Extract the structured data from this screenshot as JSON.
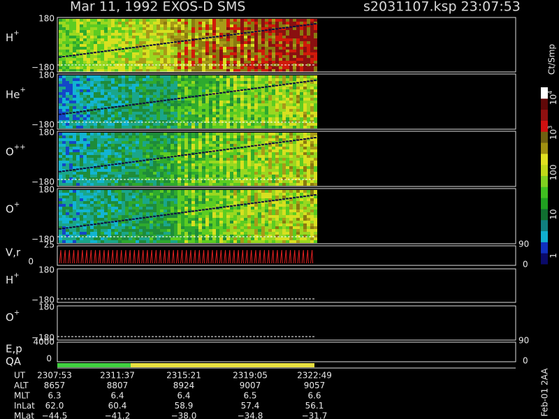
{
  "header": {
    "title": "Mar 11, 1992   EXOS-D SMS",
    "file": "s2031107.ksp  23:07:53"
  },
  "panels": [
    {
      "ion": "H",
      "charge": "+",
      "top_tick": "180",
      "bottom_tick": "−180"
    },
    {
      "ion": "He",
      "charge": "+",
      "top_tick": "180",
      "bottom_tick": "−180"
    },
    {
      "ion": "O",
      "charge": "++",
      "top_tick": "180",
      "bottom_tick": "−180"
    },
    {
      "ion": "O",
      "charge": "+",
      "top_tick": "180",
      "bottom_tick": "−180"
    }
  ],
  "vr": {
    "label": "V,r",
    "top_tick": "25",
    "bottom_tick": "0",
    "right_top": "90",
    "right_bottom": "0"
  },
  "low_panels": [
    {
      "ion": "H",
      "charge": "+",
      "top_tick": "180",
      "bottom_tick": "−180"
    },
    {
      "ion": "O",
      "charge": "+",
      "top_tick": "180",
      "bottom_tick": "−180"
    }
  ],
  "ep": {
    "label": "E,p",
    "top_tick": "4000",
    "bottom_tick": "0",
    "right_top": "90",
    "right_bottom": "0"
  },
  "qa": {
    "label": "QA"
  },
  "colorbar": {
    "unit": "Ct/Smp",
    "labels": [
      {
        "base": "10",
        "exp": "4"
      },
      {
        "base": "10",
        "exp": "3"
      },
      {
        "base": "100"
      },
      {
        "base": "10"
      },
      {
        "base": "1"
      }
    ]
  },
  "orbit": {
    "rows": [
      {
        "name": "UT",
        "values": [
          "2307:53",
          "2311:37",
          "2315:21",
          "2319:05",
          "2322:49"
        ]
      },
      {
        "name": "ALT",
        "values": [
          "8657",
          "8807",
          "8924",
          "9007",
          "9057"
        ]
      },
      {
        "name": "MLT",
        "values": [
          "6.3",
          "6.4",
          "6.4",
          "6.5",
          "6.6"
        ]
      },
      {
        "name": "InLat",
        "values": [
          "62.0",
          "60.4",
          "58.9",
          "57.4",
          "56.1"
        ]
      },
      {
        "name": "MLat",
        "values": [
          "−44.5",
          "−41.2",
          "−38.0",
          "−34.8",
          "−31.7"
        ]
      }
    ]
  },
  "footer_note": "Feb-01 2AA"
}
